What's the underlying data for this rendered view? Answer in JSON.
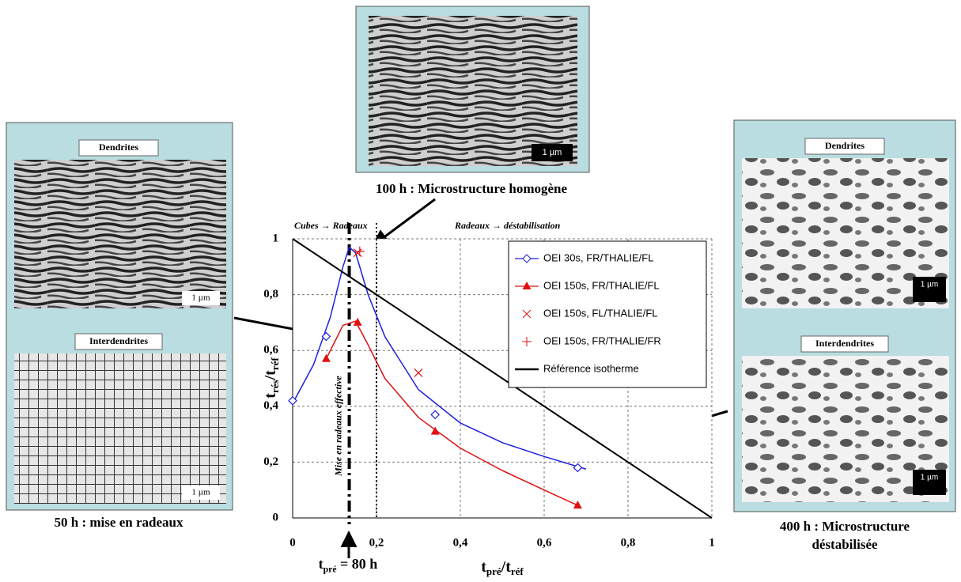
{
  "chart_data": {
    "type": "scatter",
    "xlim": [
      0,
      1
    ],
    "ylim": [
      0,
      1
    ],
    "xticks": [
      0,
      {
        "value": 0.2,
        "label": "0,2"
      },
      {
        "value": 0.4,
        "label": "0,4"
      },
      {
        "value": 0.6,
        "label": "0,6"
      },
      {
        "value": 0.8,
        "label": "0,8"
      },
      1
    ],
    "yticks": [
      0,
      {
        "value": 0.2,
        "label": "0,2"
      },
      {
        "value": 0.4,
        "label": "0,4"
      },
      {
        "value": 0.6,
        "label": "0,6"
      },
      {
        "value": 0.8,
        "label": "0,8"
      },
      1
    ],
    "grid": true,
    "ylabel": [
      "t",
      "rés",
      "/t",
      "réf"
    ],
    "xlabel": [
      "t",
      "pré",
      "/t",
      "réf"
    ],
    "series": [
      {
        "name": "OEI 30s, FR/THALIE/FL",
        "color": "#1f1fe0",
        "marker": "diamond",
        "x": [
          0,
          0.08,
          0.34,
          0.68
        ],
        "values": [
          0.42,
          0.65,
          0.37,
          0.18
        ],
        "curve_x": [
          0,
          0.05,
          0.09,
          0.12,
          0.135,
          0.15,
          0.18,
          0.22,
          0.3,
          0.4,
          0.5,
          0.6,
          0.7
        ],
        "curve_y": [
          0.41,
          0.55,
          0.72,
          0.9,
          0.97,
          0.95,
          0.8,
          0.65,
          0.46,
          0.34,
          0.27,
          0.22,
          0.175
        ]
      },
      {
        "name": "OEI 150s, FR/THALIE/FL",
        "color": "#e01010",
        "marker": "triangle",
        "x": [
          0.08,
          0.155,
          0.34,
          0.68
        ],
        "values": [
          0.57,
          0.7,
          0.31,
          0.045
        ],
        "curve_x": [
          0.08,
          0.1,
          0.12,
          0.15,
          0.18,
          0.22,
          0.3,
          0.4,
          0.5,
          0.6,
          0.68
        ],
        "curve_y": [
          0.57,
          0.63,
          0.69,
          0.705,
          0.62,
          0.5,
          0.36,
          0.25,
          0.17,
          0.1,
          0.045
        ]
      },
      {
        "name": "OEI 150s, FL/THALIE/FL",
        "color": "#e01010",
        "marker": "cross",
        "x": [
          0.155,
          0.3
        ],
        "values": [
          0.95,
          0.52
        ]
      },
      {
        "name": "OEI 150s, FR/THALIE/FR",
        "color": "#e01010",
        "marker": "plus",
        "x": [
          0.16
        ],
        "values": [
          0.955
        ]
      },
      {
        "name": "Référence isotherme",
        "color": "#000000",
        "marker": "line",
        "x": [
          0,
          1
        ],
        "values": [
          1,
          0
        ]
      }
    ],
    "vline_dashdot": 0.135,
    "vline_dotted": 0.2,
    "annotations": {
      "left_stage": "Cubes → Radeaux",
      "right_stage": "Radeaux → déstabilisation",
      "vertical": "Mise en radeaux effective",
      "tpre": [
        "t",
        "pré",
        " = 80 h"
      ],
      "top_caption": "100 h : Microstructure homogène",
      "left_caption": "50 h :  mise en radeaux",
      "right_caption": [
        "400 h : Microstructure",
        "déstabilisée"
      ],
      "dendrites": "Dendrites",
      "interdendrites": "Interdendrites",
      "scale": "1 µm"
    }
  }
}
